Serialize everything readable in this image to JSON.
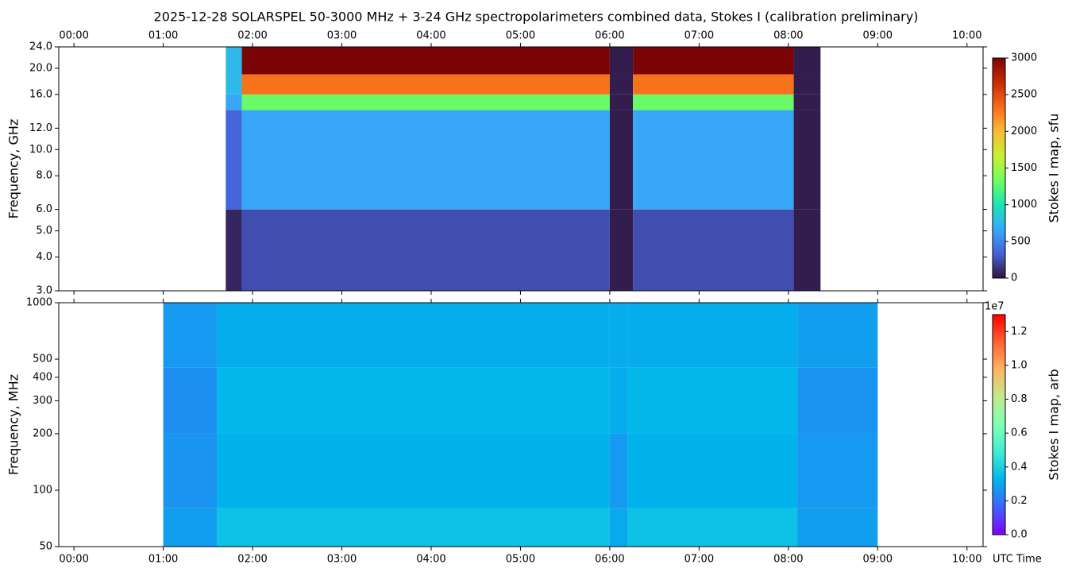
{
  "chart_data": [
    {
      "type": "spectrogram",
      "title": "2025-12-28  SOLARSPEL  50-3000 MHz  +  3-24 GHz  spectropolarimeters combined data,  Stokes I  (calibration preliminary)",
      "y_label": "Frequency, GHz",
      "colorbar_label": "Stokes I map, sfu",
      "xlim": [
        -0.17,
        10.18
      ],
      "xticks": [
        {
          "value": 0,
          "label": "00:00"
        },
        {
          "value": 1,
          "label": "01:00"
        },
        {
          "value": 2,
          "label": "02:00"
        },
        {
          "value": 3,
          "label": "03:00"
        },
        {
          "value": 4,
          "label": "04:00"
        },
        {
          "value": 5,
          "label": "05:00"
        },
        {
          "value": 6,
          "label": "06:00"
        },
        {
          "value": 7,
          "label": "07:00"
        },
        {
          "value": 8,
          "label": "08:00"
        },
        {
          "value": 9,
          "label": "09:00"
        },
        {
          "value": 10,
          "label": "10:00"
        }
      ],
      "ylim": [
        3,
        24
      ],
      "yscale": "log",
      "yticks": [
        {
          "value": 3,
          "label": "3.0"
        },
        {
          "value": 4,
          "label": "4.0"
        },
        {
          "value": 5,
          "label": "5.0"
        },
        {
          "value": 6,
          "label": "6.0"
        },
        {
          "value": 8,
          "label": "8.0"
        },
        {
          "value": 10,
          "label": "10.0"
        },
        {
          "value": 12,
          "label": "12.0"
        },
        {
          "value": 16,
          "label": "16.0"
        },
        {
          "value": 20,
          "label": "20.0"
        },
        {
          "value": 24,
          "label": "24.0"
        }
      ],
      "band_edges": [
        3,
        6,
        14,
        16,
        19,
        24
      ],
      "segments": [
        {
          "start": 1.7,
          "end": 1.88,
          "values": [
            80,
            350,
            650,
            750,
            750
          ]
        },
        {
          "start": 1.88,
          "end": 6.0,
          "values": [
            250,
            650,
            1300,
            2300,
            3000
          ]
        },
        {
          "start": 6.0,
          "end": 6.26,
          "values": [
            40,
            40,
            40,
            40,
            40
          ]
        },
        {
          "start": 6.26,
          "end": 8.06,
          "values": [
            250,
            650,
            1300,
            2300,
            3000
          ]
        },
        {
          "start": 8.06,
          "end": 8.36,
          "values": [
            40,
            40,
            40,
            40,
            40
          ]
        }
      ],
      "clim": [
        0,
        3000
      ],
      "cticks": [
        0,
        500,
        1000,
        1500,
        2000,
        2500,
        3000
      ],
      "colormap": [
        "#30123b",
        "#4662d7",
        "#36aaf9",
        "#1ae4b6",
        "#72fe5e",
        "#c8ef34",
        "#faba39",
        "#f66b19",
        "#ca2a04",
        "#7a0403"
      ]
    },
    {
      "type": "spectrogram",
      "y_label": "Frequency, MHz",
      "colorbar_label": "Stokes I map, arb",
      "colorbar_offset": "1e7",
      "x_label": "UTC Time",
      "xlim": [
        -0.17,
        10.18
      ],
      "xticks": [
        {
          "value": 0,
          "label": "00:00"
        },
        {
          "value": 1,
          "label": "01:00"
        },
        {
          "value": 2,
          "label": "02:00"
        },
        {
          "value": 3,
          "label": "03:00"
        },
        {
          "value": 4,
          "label": "04:00"
        },
        {
          "value": 5,
          "label": "05:00"
        },
        {
          "value": 6,
          "label": "06:00"
        },
        {
          "value": 7,
          "label": "07:00"
        },
        {
          "value": 8,
          "label": "08:00"
        },
        {
          "value": 9,
          "label": "09:00"
        },
        {
          "value": 10,
          "label": "10:00"
        }
      ],
      "ylim": [
        50,
        1000
      ],
      "yscale": "log",
      "yticks": [
        50,
        100,
        200,
        300,
        400,
        500,
        1000
      ],
      "band_edges": [
        50,
        80,
        200,
        450,
        1000
      ],
      "segments": [
        {
          "start": 1.0,
          "end": 1.6,
          "values": [
            2800000,
            2600000,
            2500000,
            2700000
          ]
        },
        {
          "start": 1.6,
          "end": 6.0,
          "values": [
            3600000,
            3200000,
            3300000,
            3100000
          ]
        },
        {
          "start": 6.0,
          "end": 6.2,
          "values": [
            3000000,
            2700000,
            3100000,
            3100000
          ]
        },
        {
          "start": 6.2,
          "end": 8.1,
          "values": [
            3600000,
            3200000,
            3300000,
            3100000
          ]
        },
        {
          "start": 8.1,
          "end": 9.0,
          "values": [
            2800000,
            2700000,
            2600000,
            2800000
          ]
        }
      ],
      "clim": [
        0,
        13000000
      ],
      "cticks": [
        {
          "value": 0,
          "label": "0.0"
        },
        {
          "value": 2000000,
          "label": "0.2"
        },
        {
          "value": 4000000,
          "label": "0.4"
        },
        {
          "value": 6000000,
          "label": "0.6"
        },
        {
          "value": 8000000,
          "label": "0.8"
        },
        {
          "value": 10000000,
          "label": "1.0"
        },
        {
          "value": 12000000,
          "label": "1.2"
        }
      ],
      "colormap": [
        "#8000ff",
        "#4062fa",
        "#00b5eb",
        "#40ecd4",
        "#80ffb4",
        "#c0eb8d",
        "#ffb462",
        "#ff6232",
        "#ff0000"
      ]
    }
  ]
}
